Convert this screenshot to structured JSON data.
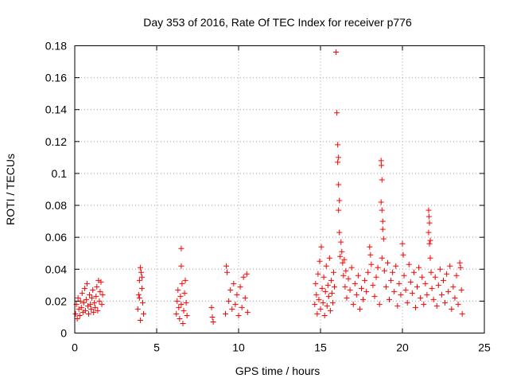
{
  "chart_data": {
    "type": "scatter",
    "title": "Day 353 of 2016, Rate Of TEC Index for receiver p776",
    "xlabel": "GPS time / hours",
    "ylabel": "ROTI / TECUs",
    "xlim": [
      0,
      25
    ],
    "ylim": [
      0,
      0.18
    ],
    "xticks": [
      "0",
      "5",
      "10",
      "15",
      "20",
      "25"
    ],
    "yticks": [
      "0",
      "0.02",
      "0.04",
      "0.06",
      "0.08",
      "0.1",
      "0.12",
      "0.14",
      "0.16",
      "0.18"
    ],
    "grid": true,
    "marker": "+",
    "color": "#ff0000",
    "series": [
      {
        "name": "ROTI",
        "points": [
          [
            0.05,
            0.012
          ],
          [
            0.1,
            0.018
          ],
          [
            0.15,
            0.009
          ],
          [
            0.2,
            0.022
          ],
          [
            0.25,
            0.015
          ],
          [
            0.3,
            0.011
          ],
          [
            0.35,
            0.02
          ],
          [
            0.4,
            0.016
          ],
          [
            0.45,
            0.025
          ],
          [
            0.5,
            0.013
          ],
          [
            0.55,
            0.019
          ],
          [
            0.6,
            0.028
          ],
          [
            0.65,
            0.014
          ],
          [
            0.7,
            0.021
          ],
          [
            0.75,
            0.031
          ],
          [
            0.8,
            0.017
          ],
          [
            0.85,
            0.012
          ],
          [
            0.9,
            0.024
          ],
          [
            0.95,
            0.018
          ],
          [
            1.0,
            0.015
          ],
          [
            1.05,
            0.022
          ],
          [
            1.1,
            0.027
          ],
          [
            1.15,
            0.013
          ],
          [
            1.2,
            0.019
          ],
          [
            1.25,
            0.016
          ],
          [
            1.3,
            0.023
          ],
          [
            1.35,
            0.029
          ],
          [
            1.4,
            0.014
          ],
          [
            1.45,
            0.033
          ],
          [
            1.5,
            0.02
          ],
          [
            1.55,
            0.026
          ],
          [
            1.6,
            0.032
          ],
          [
            1.65,
            0.018
          ],
          [
            1.7,
            0.024
          ],
          [
            3.85,
            0.015
          ],
          [
            3.9,
            0.024
          ],
          [
            3.95,
            0.033
          ],
          [
            4.0,
            0.041
          ],
          [
            4.05,
            0.038
          ],
          [
            4.1,
            0.028
          ],
          [
            4.15,
            0.019
          ],
          [
            4.2,
            0.012
          ],
          [
            4.0,
            0.008
          ],
          [
            4.1,
            0.035
          ],
          [
            3.95,
            0.022
          ],
          [
            6.2,
            0.012
          ],
          [
            6.25,
            0.02
          ],
          [
            6.3,
            0.027
          ],
          [
            6.35,
            0.016
          ],
          [
            6.4,
            0.009
          ],
          [
            6.45,
            0.023
          ],
          [
            6.5,
            0.018
          ],
          [
            6.5,
            0.053
          ],
          [
            6.5,
            0.042
          ],
          [
            6.55,
            0.031
          ],
          [
            6.6,
            0.006
          ],
          [
            6.65,
            0.014
          ],
          [
            6.7,
            0.025
          ],
          [
            6.75,
            0.033
          ],
          [
            6.8,
            0.019
          ],
          [
            6.85,
            0.011
          ],
          [
            8.35,
            0.016
          ],
          [
            8.4,
            0.01
          ],
          [
            8.45,
            0.007
          ],
          [
            9.2,
            0.012
          ],
          [
            9.25,
            0.042
          ],
          [
            9.3,
            0.038
          ],
          [
            9.4,
            0.02
          ],
          [
            9.5,
            0.027
          ],
          [
            9.6,
            0.015
          ],
          [
            9.7,
            0.031
          ],
          [
            9.8,
            0.018
          ],
          [
            9.9,
            0.024
          ],
          [
            10.0,
            0.011
          ],
          [
            10.1,
            0.029
          ],
          [
            10.2,
            0.016
          ],
          [
            10.3,
            0.035
          ],
          [
            10.4,
            0.022
          ],
          [
            10.5,
            0.037
          ],
          [
            10.55,
            0.013
          ],
          [
            14.65,
            0.018
          ],
          [
            14.7,
            0.031
          ],
          [
            14.75,
            0.024
          ],
          [
            14.8,
            0.012
          ],
          [
            14.85,
            0.037
          ],
          [
            14.9,
            0.021
          ],
          [
            14.95,
            0.045
          ],
          [
            15.0,
            0.015
          ],
          [
            15.05,
            0.054
          ],
          [
            15.1,
            0.028
          ],
          [
            15.15,
            0.019
          ],
          [
            15.2,
            0.035
          ],
          [
            15.25,
            0.011
          ],
          [
            15.3,
            0.026
          ],
          [
            15.35,
            0.042
          ],
          [
            15.4,
            0.017
          ],
          [
            15.45,
            0.03
          ],
          [
            15.5,
            0.023
          ],
          [
            15.55,
            0.047
          ],
          [
            15.6,
            0.014
          ],
          [
            15.65,
            0.033
          ],
          [
            15.7,
            0.025
          ],
          [
            15.75,
            0.019
          ],
          [
            15.8,
            0.038
          ],
          [
            15.85,
            0.029
          ],
          [
            15.95,
            0.176
          ],
          [
            16.0,
            0.138
          ],
          [
            16.05,
            0.118
          ],
          [
            16.1,
            0.11
          ],
          [
            16.05,
            0.107
          ],
          [
            16.1,
            0.093
          ],
          [
            16.15,
            0.083
          ],
          [
            16.1,
            0.077
          ],
          [
            16.15,
            0.063
          ],
          [
            16.2,
            0.048
          ],
          [
            16.25,
            0.057
          ],
          [
            16.3,
            0.051
          ],
          [
            16.35,
            0.044
          ],
          [
            16.4,
            0.036
          ],
          [
            16.45,
            0.046
          ],
          [
            16.5,
            0.029
          ],
          [
            16.55,
            0.039
          ],
          [
            16.6,
            0.022
          ],
          [
            16.7,
            0.034
          ],
          [
            16.8,
            0.027
          ],
          [
            16.9,
            0.041
          ],
          [
            17.0,
            0.018
          ],
          [
            17.1,
            0.031
          ],
          [
            17.2,
            0.024
          ],
          [
            17.3,
            0.036
          ],
          [
            17.4,
            0.015
          ],
          [
            17.5,
            0.028
          ],
          [
            17.6,
            0.021
          ],
          [
            17.7,
            0.033
          ],
          [
            17.8,
            0.026
          ],
          [
            17.9,
            0.038
          ],
          [
            18.0,
            0.054
          ],
          [
            18.05,
            0.049
          ],
          [
            18.1,
            0.043
          ],
          [
            18.2,
            0.03
          ],
          [
            18.3,
            0.023
          ],
          [
            18.4,
            0.035
          ],
          [
            18.5,
            0.041
          ],
          [
            18.6,
            0.018
          ],
          [
            18.7,
            0.108
          ],
          [
            18.72,
            0.105
          ],
          [
            18.75,
            0.096
          ],
          [
            18.7,
            0.082
          ],
          [
            18.75,
            0.077
          ],
          [
            18.8,
            0.07
          ],
          [
            18.8,
            0.065
          ],
          [
            18.85,
            0.059
          ],
          [
            18.75,
            0.047
          ],
          [
            18.9,
            0.039
          ],
          [
            19.0,
            0.029
          ],
          [
            19.1,
            0.044
          ],
          [
            19.2,
            0.021
          ],
          [
            19.3,
            0.033
          ],
          [
            19.4,
            0.038
          ],
          [
            19.5,
            0.026
          ],
          [
            19.6,
            0.042
          ],
          [
            19.7,
            0.017
          ],
          [
            19.8,
            0.031
          ],
          [
            19.9,
            0.024
          ],
          [
            20.0,
            0.056
          ],
          [
            20.05,
            0.049
          ],
          [
            20.1,
            0.036
          ],
          [
            20.2,
            0.027
          ],
          [
            20.3,
            0.019
          ],
          [
            20.4,
            0.043
          ],
          [
            20.5,
            0.032
          ],
          [
            20.6,
            0.025
          ],
          [
            20.7,
            0.038
          ],
          [
            20.8,
            0.016
          ],
          [
            20.9,
            0.029
          ],
          [
            21.0,
            0.041
          ],
          [
            21.1,
            0.022
          ],
          [
            21.2,
            0.035
          ],
          [
            21.3,
            0.018
          ],
          [
            21.4,
            0.031
          ],
          [
            21.5,
            0.024
          ],
          [
            21.6,
            0.077
          ],
          [
            21.62,
            0.073
          ],
          [
            21.65,
            0.069
          ],
          [
            21.6,
            0.063
          ],
          [
            21.7,
            0.058
          ],
          [
            21.65,
            0.056
          ],
          [
            21.7,
            0.047
          ],
          [
            21.75,
            0.038
          ],
          [
            21.8,
            0.028
          ],
          [
            21.9,
            0.021
          ],
          [
            22.0,
            0.035
          ],
          [
            22.1,
            0.017
          ],
          [
            22.2,
            0.03
          ],
          [
            22.3,
            0.04
          ],
          [
            22.4,
            0.024
          ],
          [
            22.5,
            0.033
          ],
          [
            22.6,
            0.019
          ],
          [
            22.7,
            0.037
          ],
          [
            22.8,
            0.026
          ],
          [
            22.9,
            0.042
          ],
          [
            23.0,
            0.015
          ],
          [
            23.1,
            0.029
          ],
          [
            23.2,
            0.022
          ],
          [
            23.3,
            0.036
          ],
          [
            23.4,
            0.018
          ],
          [
            23.5,
            0.044
          ],
          [
            23.55,
            0.041
          ],
          [
            23.6,
            0.027
          ],
          [
            23.65,
            0.012
          ]
        ]
      }
    ]
  }
}
